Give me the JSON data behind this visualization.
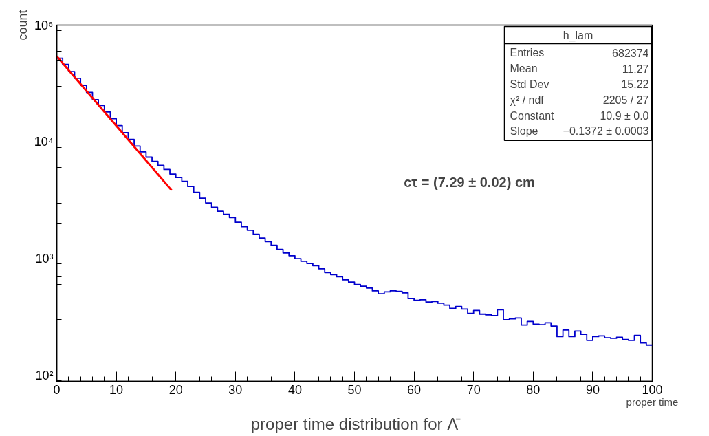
{
  "chart_data": {
    "type": "histogram",
    "title": "proper time distribution for Λ̄",
    "xlabel": "proper time",
    "ylabel": "count",
    "bins": [
      0,
      1,
      2,
      3,
      4,
      5,
      6,
      7,
      8,
      9,
      10,
      11,
      12,
      13,
      14,
      15,
      16,
      17,
      18,
      19,
      20,
      21,
      22,
      23,
      24,
      25,
      26,
      27,
      28,
      29,
      30,
      31,
      32,
      33,
      34,
      35,
      36,
      37,
      38,
      39,
      40,
      41,
      42,
      43,
      44,
      45,
      46,
      47,
      48,
      49,
      50,
      51,
      52,
      53,
      54,
      55,
      56,
      57,
      58,
      59,
      60,
      61,
      62,
      63,
      64,
      65,
      66,
      67,
      68,
      69,
      70,
      71,
      72,
      73,
      74,
      75,
      76,
      77,
      78,
      79,
      80,
      81,
      82,
      83,
      84,
      85,
      86,
      87,
      88,
      89,
      90,
      91,
      92,
      93,
      94,
      95,
      96,
      97,
      98,
      99,
      100
    ],
    "values": [
      52000,
      46000,
      40000,
      35000,
      30500,
      26500,
      23000,
      20500,
      18000,
      15800,
      13800,
      12000,
      10500,
      9200,
      8200,
      7400,
      6800,
      6300,
      5800,
      5300,
      4950,
      4600,
      4150,
      3700,
      3300,
      3000,
      2750,
      2550,
      2400,
      2250,
      2050,
      1880,
      1750,
      1620,
      1500,
      1400,
      1300,
      1200,
      1120,
      1060,
      1000,
      950,
      910,
      870,
      820,
      760,
      730,
      700,
      660,
      630,
      600,
      580,
      560,
      530,
      500,
      520,
      530,
      525,
      510,
      455,
      440,
      445,
      425,
      430,
      415,
      400,
      375,
      390,
      370,
      340,
      360,
      335,
      330,
      325,
      365,
      300,
      305,
      310,
      270,
      290,
      275,
      272,
      282,
      265,
      215,
      245,
      215,
      240,
      225,
      200,
      215,
      218,
      210,
      208,
      212,
      203,
      200,
      220,
      190,
      182
    ],
    "color": "#0000cc",
    "series": [
      {
        "type": "line",
        "color": "#ff0000",
        "x": [
          0,
          19.3
        ],
        "values": [
          54200,
          3840
        ]
      }
    ],
    "log": true,
    "xlim": [
      0,
      100
    ],
    "xticks": [
      0,
      10,
      20,
      30,
      40,
      50,
      60,
      70,
      80,
      90,
      100
    ],
    "ylim": [
      89,
      100000
    ],
    "yticks": [
      {
        "value": 100,
        "label": "10²"
      },
      {
        "value": 1000,
        "label": "10³"
      },
      {
        "value": 10000,
        "label": "10⁴"
      },
      {
        "value": 100000,
        "label": "10⁵"
      }
    ],
    "annotations": [
      "cτ = (7.29 ± 0.02) cm",
      "h_lam",
      "Entries",
      "682374",
      "Mean",
      "11.27",
      "Std Dev",
      "15.22",
      "χ² / ndf",
      "2205 / 27",
      "Constant",
      "10.9 ± 0.0",
      "Slope",
      "−0.1372 ± 0.0003"
    ]
  }
}
